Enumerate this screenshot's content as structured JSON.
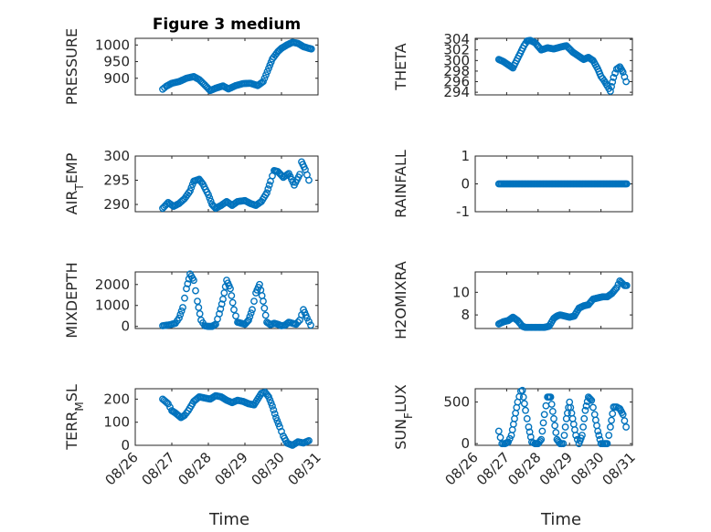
{
  "figure": {
    "title": "Figure 3 medium",
    "xlabel": "Time"
  },
  "chart_data": [
    {
      "type": "scatter",
      "title": "Figure 3 medium",
      "ylabel": "PRESSURE",
      "ylabel_parts": [
        {
          "t": "PRESSURE"
        }
      ],
      "ylim": [
        850,
        1020
      ],
      "yticks": [
        900,
        950,
        1000
      ],
      "xlim": [
        "08/26",
        "08/31"
      ],
      "xticks": [
        "08/26",
        "08/27",
        "08/28",
        "08/29",
        "08/30",
        "08/31"
      ],
      "x_start": "08/26",
      "x_end": "08/31",
      "x": [
        0.75,
        0.85,
        1.0,
        1.2,
        1.4,
        1.6,
        1.75,
        1.9,
        2.05,
        2.2,
        2.4,
        2.55,
        2.75,
        2.95,
        3.15,
        3.35,
        3.5,
        3.65,
        3.75,
        3.9,
        4.0,
        4.15,
        4.3,
        4.45,
        4.6,
        4.75,
        4.82
      ],
      "y": [
        867,
        876,
        885,
        890,
        900,
        905,
        896,
        880,
        863,
        870,
        877,
        868,
        878,
        884,
        885,
        878,
        890,
        930,
        958,
        980,
        990,
        1000,
        1008,
        1005,
        995,
        990,
        988
      ]
    },
    {
      "type": "scatter",
      "ylabel": "THETA",
      "ylabel_parts": [
        {
          "t": "THETA"
        }
      ],
      "ylim": [
        293.5,
        304.2
      ],
      "yticks": [
        294,
        296,
        298,
        300,
        302,
        304
      ],
      "xlim": [
        "08/26",
        "08/31"
      ],
      "xticks": [
        "08/26",
        "08/27",
        "08/28",
        "08/29",
        "08/30",
        "08/31"
      ],
      "x_start": "08/26",
      "x_end": "08/31",
      "x": [
        0.75,
        0.9,
        1.05,
        1.2,
        1.35,
        1.55,
        1.65,
        1.75,
        1.9,
        2.1,
        2.3,
        2.5,
        2.75,
        2.9,
        3.1,
        3.3,
        3.45,
        3.6,
        3.75,
        3.9,
        4.0,
        4.1,
        4.2,
        4.3,
        4.4,
        4.5,
        4.6,
        4.7,
        4.8
      ],
      "y": [
        300.2,
        299.8,
        299.2,
        298.6,
        300.4,
        302.8,
        303.7,
        303.8,
        303.4,
        302.0,
        302.4,
        302.2,
        302.6,
        302.8,
        301.6,
        300.8,
        300.2,
        300.6,
        300.0,
        298.4,
        297.0,
        296.2,
        295.2,
        294.2,
        296.8,
        298.4,
        298.8,
        297.8,
        296.0
      ]
    },
    {
      "type": "scatter",
      "ylabel": "AIR_TEMP",
      "ylabel_parts": [
        {
          "t": "AIR"
        },
        {
          "t": "T",
          "sub": true
        },
        {
          "t": "EMP"
        }
      ],
      "ylim": [
        288.5,
        300
      ],
      "yticks": [
        290,
        295,
        300
      ],
      "xlim": [
        "08/26",
        "08/31"
      ],
      "xticks": [
        "08/26",
        "08/27",
        "08/28",
        "08/29",
        "08/30",
        "08/31"
      ],
      "x": [
        0.75,
        0.9,
        1.05,
        1.2,
        1.35,
        1.5,
        1.6,
        1.75,
        1.85,
        2.0,
        2.1,
        2.2,
        2.35,
        2.5,
        2.65,
        2.8,
        3.0,
        3.15,
        3.3,
        3.45,
        3.6,
        3.7,
        3.8,
        3.9,
        4.05,
        4.2,
        4.35,
        4.5,
        4.55,
        4.65,
        4.75
      ],
      "y": [
        289.2,
        290.4,
        289.6,
        290.2,
        291.2,
        292.8,
        294.8,
        295.2,
        294.2,
        292.0,
        290.0,
        289.2,
        289.8,
        290.6,
        289.8,
        290.6,
        290.8,
        290.2,
        289.8,
        290.6,
        292.4,
        294.8,
        297.0,
        296.8,
        295.6,
        296.4,
        294.0,
        296.2,
        298.8,
        297.2,
        295.0
      ]
    },
    {
      "type": "scatter",
      "ylabel": "RAINFALL",
      "ylabel_parts": [
        {
          "t": "RAINFALL"
        }
      ],
      "ylim": [
        -1,
        1
      ],
      "yticks": [
        -1,
        0,
        1
      ],
      "xlim": [
        "08/26",
        "08/31"
      ],
      "xticks": [
        "08/26",
        "08/27",
        "08/28",
        "08/29",
        "08/30",
        "08/31"
      ],
      "x": [
        0.75,
        1.0,
        1.25,
        1.5,
        1.75,
        2.0,
        2.25,
        2.5,
        2.75,
        3.0,
        3.25,
        3.5,
        3.75,
        4.0,
        4.25,
        4.5,
        4.75,
        4.82
      ],
      "y": [
        0,
        0,
        0,
        0,
        0,
        0,
        0,
        0,
        0,
        0,
        0,
        0,
        0,
        0,
        0,
        0,
        0,
        0
      ]
    },
    {
      "type": "scatter",
      "ylabel": "MIXDEPTH",
      "ylabel_parts": [
        {
          "t": "MIXDEPTH"
        }
      ],
      "ylim": [
        -100,
        2600
      ],
      "yticks": [
        0,
        1000,
        2000
      ],
      "xlim": [
        "08/26",
        "08/31"
      ],
      "xticks": [
        "08/26",
        "08/27",
        "08/28",
        "08/29",
        "08/30",
        "08/31"
      ],
      "x": [
        0.75,
        0.95,
        1.1,
        1.2,
        1.3,
        1.4,
        1.5,
        1.6,
        1.7,
        1.8,
        1.9,
        2.0,
        2.1,
        2.2,
        2.3,
        2.4,
        2.5,
        2.6,
        2.7,
        2.8,
        2.9,
        3.0,
        3.1,
        3.2,
        3.3,
        3.4,
        3.5,
        3.6,
        3.7,
        3.8,
        3.9,
        4.0,
        4.1,
        4.2,
        4.3,
        4.4,
        4.5,
        4.6,
        4.7,
        4.8
      ],
      "y": [
        30,
        80,
        150,
        400,
        900,
        1800,
        2500,
        2200,
        1200,
        300,
        30,
        0,
        0,
        100,
        600,
        1300,
        2200,
        1800,
        800,
        200,
        150,
        100,
        300,
        800,
        1600,
        2000,
        1200,
        200,
        80,
        150,
        100,
        30,
        60,
        200,
        150,
        100,
        300,
        800,
        400,
        60
      ]
    },
    {
      "type": "scatter",
      "ylabel": "H2OMIXRA",
      "ylabel_parts": [
        {
          "t": "H2OMIXRA"
        }
      ],
      "ylim": [
        6.8,
        11.8
      ],
      "yticks": [
        8,
        10
      ],
      "xlim": [
        "08/26",
        "08/31"
      ],
      "xticks": [
        "08/26",
        "08/27",
        "08/28",
        "08/29",
        "08/30",
        "08/31"
      ],
      "x": [
        0.75,
        0.9,
        1.05,
        1.2,
        1.35,
        1.5,
        1.6,
        1.75,
        1.9,
        2.05,
        2.2,
        2.35,
        2.5,
        2.6,
        2.7,
        2.85,
        3.0,
        3.15,
        3.3,
        3.45,
        3.6,
        3.75,
        3.9,
        4.05,
        4.2,
        4.35,
        4.5,
        4.6,
        4.75,
        4.82
      ],
      "y": [
        7.2,
        7.4,
        7.5,
        7.8,
        7.5,
        7.0,
        6.9,
        6.9,
        6.9,
        6.9,
        6.9,
        7.0,
        7.7,
        7.9,
        8.0,
        7.9,
        7.8,
        7.9,
        8.6,
        8.8,
        8.9,
        9.4,
        9.5,
        9.6,
        9.6,
        9.9,
        10.4,
        11.0,
        10.6,
        10.6
      ]
    },
    {
      "type": "scatter",
      "ylabel": "TERR_MSL",
      "ylabel_parts": [
        {
          "t": "TERR"
        },
        {
          "t": "M",
          "sub": true
        },
        {
          "t": "SL"
        }
      ],
      "ylim": [
        0,
        245
      ],
      "yticks": [
        0,
        100,
        200
      ],
      "xlim": [
        "08/26",
        "08/31"
      ],
      "xticks": [
        "08/26",
        "08/27",
        "08/28",
        "08/29",
        "08/30",
        "08/31"
      ],
      "x": [
        0.75,
        0.9,
        1.0,
        1.1,
        1.25,
        1.35,
        1.45,
        1.6,
        1.75,
        1.9,
        2.05,
        2.2,
        2.35,
        2.5,
        2.65,
        2.8,
        2.95,
        3.1,
        3.25,
        3.35,
        3.45,
        3.55,
        3.65,
        3.75,
        3.85,
        3.95,
        4.05,
        4.15,
        4.3,
        4.45,
        4.6,
        4.75
      ],
      "y": [
        200,
        180,
        150,
        140,
        120,
        130,
        150,
        190,
        210,
        205,
        200,
        215,
        210,
        195,
        185,
        195,
        190,
        180,
        175,
        200,
        225,
        230,
        210,
        170,
        120,
        80,
        40,
        10,
        0,
        15,
        10,
        20
      ]
    },
    {
      "type": "scatter",
      "ylabel": "SUN_FLUX",
      "ylabel_parts": [
        {
          "t": "SUN"
        },
        {
          "t": "F",
          "sub": true
        },
        {
          "t": "LUX"
        }
      ],
      "ylim": [
        -20,
        660
      ],
      "yticks": [
        0,
        500
      ],
      "xlim": [
        "08/26",
        "08/31"
      ],
      "xticks": [
        "08/26",
        "08/27",
        "08/28",
        "08/29",
        "08/30",
        "08/31"
      ],
      "x": [
        0.75,
        0.85,
        0.95,
        1.05,
        1.15,
        1.25,
        1.35,
        1.45,
        1.5,
        1.6,
        1.7,
        1.8,
        1.9,
        2.0,
        2.1,
        2.2,
        2.3,
        2.4,
        2.5,
        2.6,
        2.7,
        2.8,
        2.9,
        3.0,
        3.1,
        3.2,
        3.3,
        3.4,
        3.5,
        3.6,
        3.7,
        3.8,
        3.9,
        4.0,
        4.1,
        4.2,
        4.3,
        4.4,
        4.5,
        4.6,
        4.7,
        4.8
      ],
      "y": [
        150,
        0,
        0,
        20,
        100,
        300,
        500,
        630,
        640,
        400,
        200,
        20,
        0,
        0,
        50,
        350,
        560,
        560,
        300,
        50,
        0,
        0,
        300,
        500,
        300,
        100,
        0,
        100,
        400,
        560,
        520,
        350,
        150,
        0,
        0,
        0,
        200,
        440,
        440,
        420,
        350,
        200
      ]
    }
  ]
}
